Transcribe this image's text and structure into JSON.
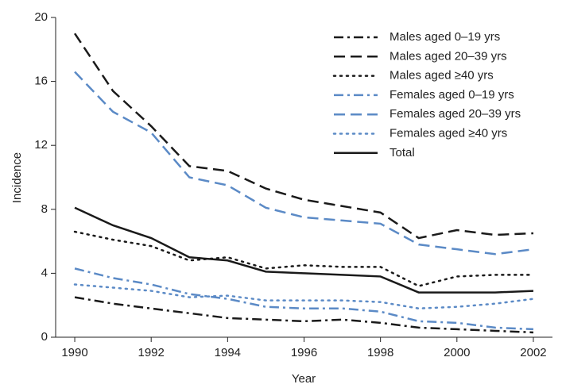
{
  "chart_data": {
    "type": "line",
    "x_label": "Year",
    "y_label": "Incidence",
    "x": [
      1990,
      1991,
      1992,
      1993,
      1994,
      1995,
      1996,
      1997,
      1998,
      1999,
      2000,
      2001,
      2002
    ],
    "xlim": [
      1989.5,
      2002.5
    ],
    "xticks": [
      1990,
      1992,
      1994,
      1996,
      1998,
      2000,
      2002
    ],
    "ylim": [
      0,
      20
    ],
    "yticks": [
      0,
      4,
      8,
      12,
      16,
      20
    ],
    "legend": "upper right",
    "series": [
      {
        "name": "Males aged 0–19 yrs",
        "color": "#1a1a1a",
        "style": "dashdot",
        "values": [
          2.5,
          2.1,
          1.8,
          1.5,
          1.2,
          1.1,
          1.0,
          1.1,
          0.9,
          0.6,
          0.5,
          0.4,
          0.3
        ]
      },
      {
        "name": "Males aged 20–39 yrs",
        "color": "#1a1a1a",
        "style": "dashed",
        "values": [
          19.0,
          15.4,
          13.2,
          10.7,
          10.4,
          9.3,
          8.6,
          8.2,
          7.8,
          6.2,
          6.7,
          6.4,
          6.5
        ]
      },
      {
        "name": "Males aged ≥40 yrs",
        "color": "#1a1a1a",
        "style": "dotted",
        "values": [
          6.6,
          6.1,
          5.7,
          4.8,
          5.0,
          4.3,
          4.5,
          4.4,
          4.4,
          3.2,
          3.8,
          3.9,
          3.9
        ]
      },
      {
        "name": "Females aged 0–19 yrs",
        "color": "#5b8ac6",
        "style": "dashdot",
        "values": [
          4.3,
          3.7,
          3.3,
          2.7,
          2.4,
          1.9,
          1.8,
          1.8,
          1.6,
          1.0,
          0.9,
          0.6,
          0.5
        ]
      },
      {
        "name": "Females aged 20–39 yrs",
        "color": "#5b8ac6",
        "style": "dashed",
        "values": [
          16.6,
          14.1,
          12.8,
          10.0,
          9.5,
          8.1,
          7.5,
          7.3,
          7.1,
          5.8,
          5.5,
          5.2,
          5.5
        ]
      },
      {
        "name": "Females aged ≥40 yrs",
        "color": "#5b8ac6",
        "style": "dotted",
        "values": [
          3.3,
          3.1,
          2.9,
          2.5,
          2.6,
          2.3,
          2.3,
          2.3,
          2.2,
          1.8,
          1.9,
          2.1,
          2.4
        ]
      },
      {
        "name": "Total",
        "color": "#1a1a1a",
        "style": "solid",
        "values": [
          8.1,
          7.0,
          6.2,
          5.0,
          4.8,
          4.1,
          4.0,
          3.9,
          3.8,
          2.8,
          2.8,
          2.8,
          2.9
        ]
      }
    ]
  }
}
